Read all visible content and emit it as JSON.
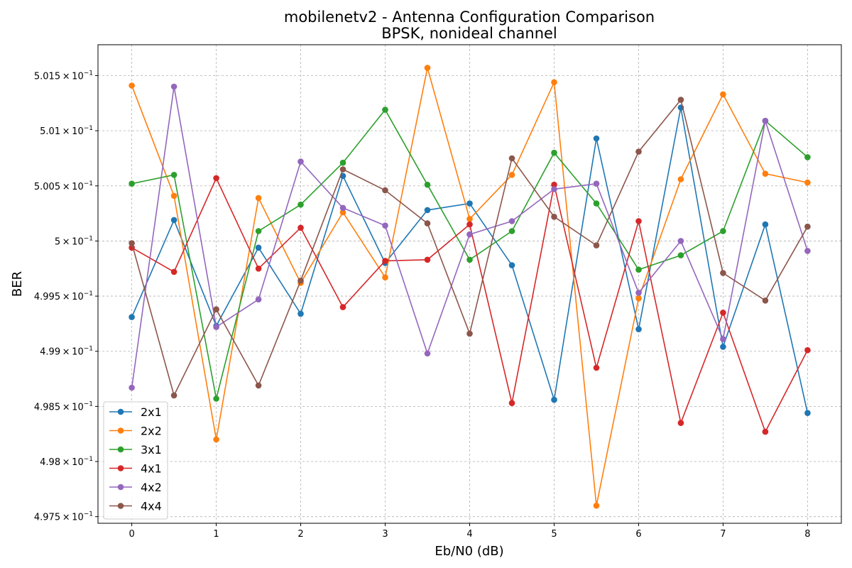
{
  "chart_data": {
    "type": "line",
    "title": "mobilenetv2 - Antenna Configuration Comparison",
    "subtitle": "BPSK, nonideal channel",
    "xlabel": "Eb/N0 (dB)",
    "ylabel": "BER",
    "xlim": [
      -0.4,
      8.4
    ],
    "ylim": [
      0.49744,
      0.50178
    ],
    "grid": true,
    "legend_position": "lower-left",
    "x": [
      0,
      0.5,
      1,
      1.5,
      2,
      2.5,
      3,
      3.5,
      4,
      4.5,
      5,
      5.5,
      6,
      6.5,
      7,
      7.5,
      8
    ],
    "x_ticks": [
      0,
      1,
      2,
      3,
      4,
      5,
      6,
      7,
      8
    ],
    "x_tick_labels": [
      "0",
      "1",
      "2",
      "3",
      "4",
      "5",
      "6",
      "7",
      "8"
    ],
    "y_ticks": [
      0.4975,
      0.498,
      0.4985,
      0.499,
      0.4995,
      0.5,
      0.5005,
      0.501,
      0.5015
    ],
    "y_tick_labels": [
      {
        "mant": "4.975",
        "exp": "−1"
      },
      {
        "mant": "4.98",
        "exp": "−1"
      },
      {
        "mant": "4.985",
        "exp": "−1"
      },
      {
        "mant": "4.99",
        "exp": "−1"
      },
      {
        "mant": "4.995",
        "exp": "−1"
      },
      {
        "mant": "5",
        "exp": "−1"
      },
      {
        "mant": "5.005",
        "exp": "−1"
      },
      {
        "mant": "5.01",
        "exp": "−1"
      },
      {
        "mant": "5.015",
        "exp": "−1"
      }
    ],
    "series": [
      {
        "name": "2x1",
        "color": "#1f77b4",
        "values": [
          0.49931,
          0.50019,
          0.49923,
          0.49994,
          0.49934,
          0.50059,
          0.4998,
          0.50028,
          0.50034,
          0.49978,
          0.49856,
          0.50093,
          0.4992,
          0.50121,
          0.49904,
          0.50015,
          0.49844
        ]
      },
      {
        "name": "2x2",
        "color": "#ff7f0e",
        "values": [
          0.50141,
          0.50041,
          0.4982,
          0.50039,
          0.49962,
          0.50026,
          0.49967,
          0.50157,
          0.5002,
          0.5006,
          0.50144,
          0.4976,
          0.49948,
          0.50056,
          0.50133,
          0.50061,
          0.50053
        ]
      },
      {
        "name": "3x1",
        "color": "#2ca02c",
        "values": [
          0.50052,
          0.5006,
          0.49857,
          0.50009,
          0.50033,
          0.50071,
          0.50119,
          0.50051,
          0.49983,
          0.50009,
          0.5008,
          0.50034,
          0.49974,
          0.49987,
          0.50009,
          0.50109,
          0.50076
        ]
      },
      {
        "name": "4x1",
        "color": "#d62728",
        "values": [
          0.49994,
          0.49972,
          0.50057,
          0.49975,
          0.50012,
          0.4994,
          0.49982,
          0.49983,
          0.50015,
          0.49853,
          0.50051,
          0.49885,
          0.50018,
          0.49835,
          0.49935,
          0.49827,
          0.49901
        ]
      },
      {
        "name": "4x2",
        "color": "#9467bd",
        "values": [
          0.49867,
          0.5014,
          0.49922,
          0.49947,
          0.50072,
          0.5003,
          0.50014,
          0.49898,
          0.50006,
          0.50018,
          0.50047,
          0.50052,
          0.49953,
          0.5,
          0.49911,
          0.50109,
          0.49991
        ]
      },
      {
        "name": "4x4",
        "color": "#8c564b",
        "values": [
          0.49998,
          0.4986,
          0.49938,
          0.49869,
          0.49964,
          0.50065,
          0.50046,
          0.50016,
          0.49916,
          0.50075,
          0.50022,
          0.49996,
          0.50081,
          0.50128,
          0.49971,
          0.49946,
          0.50013
        ]
      }
    ]
  }
}
